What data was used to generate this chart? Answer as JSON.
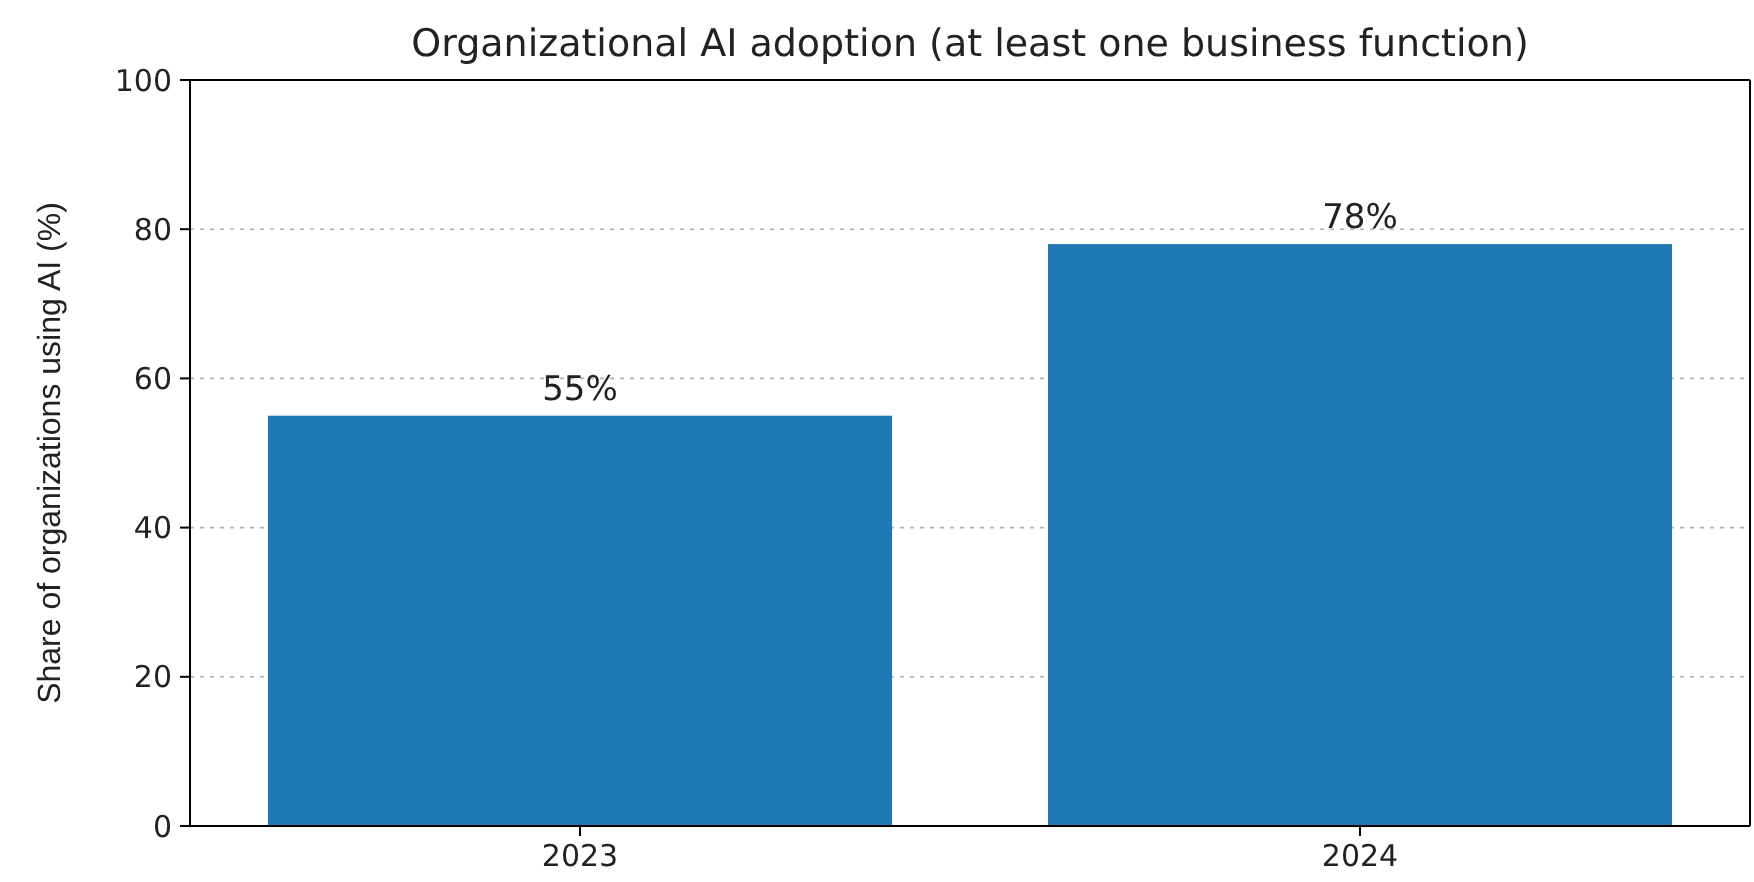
{
  "chart_data": {
    "type": "bar",
    "title": "Organizational AI adoption (at least one business function)",
    "ylabel": "Share of organizations using AI (%)",
    "categories": [
      "2023",
      "2024"
    ],
    "values": [
      55,
      78
    ],
    "value_labels": [
      "55%",
      "78%"
    ],
    "color": "#1f77b4",
    "ylim": [
      0,
      100
    ],
    "yticks": [
      0,
      20,
      40,
      60,
      80,
      100
    ],
    "grid": "y"
  }
}
